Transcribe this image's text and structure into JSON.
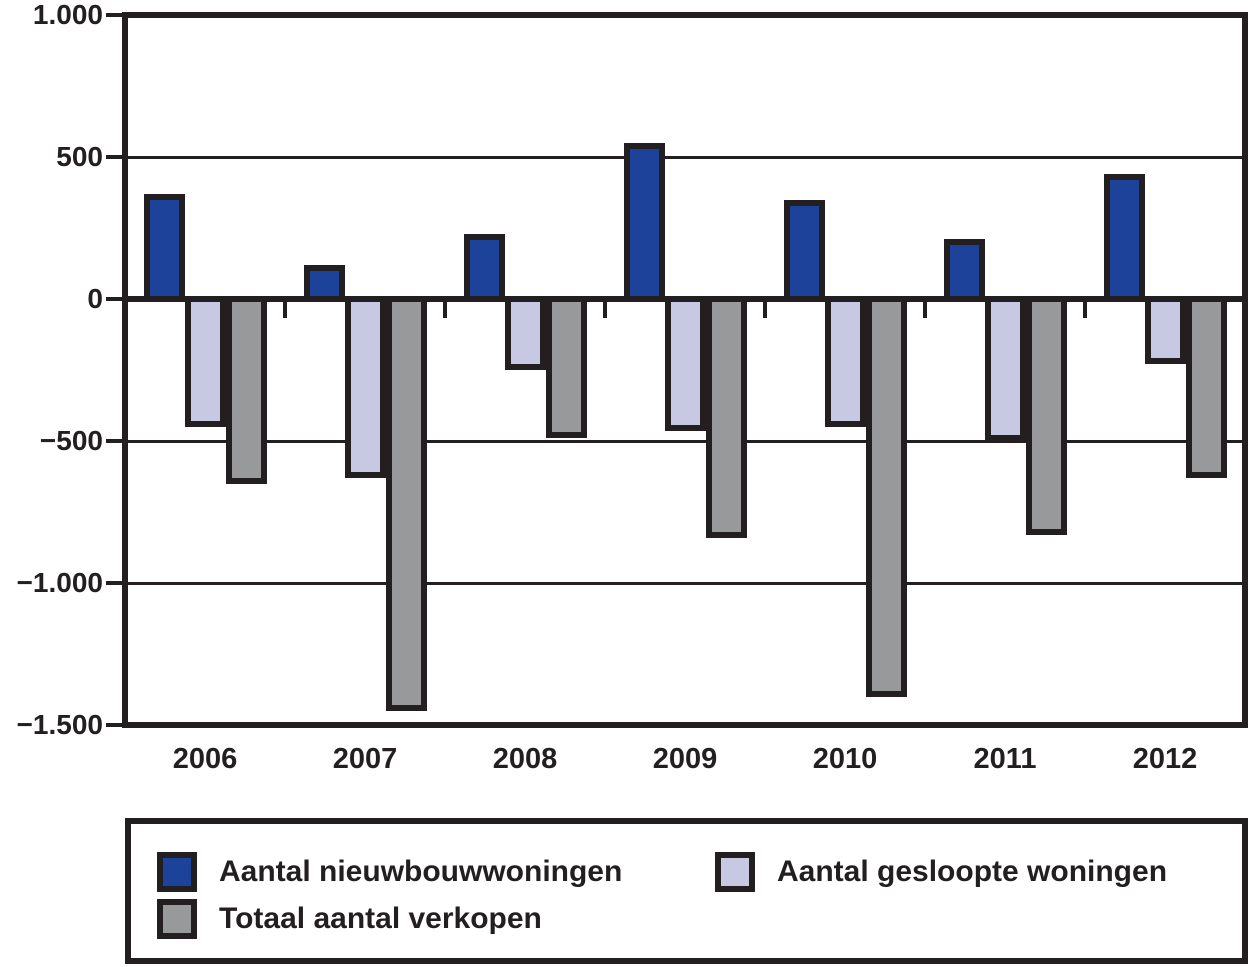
{
  "chart_data": {
    "type": "bar",
    "title": "",
    "xlabel": "",
    "ylabel": "",
    "categories": [
      "2006",
      "2007",
      "2008",
      "2009",
      "2010",
      "2011",
      "2012"
    ],
    "series": [
      {
        "name": "Aantal nieuwbouwwoningen",
        "color": "#1d4299",
        "values": [
          370,
          120,
          230,
          550,
          350,
          210,
          440
        ]
      },
      {
        "name": "Aantal gesloopte woningen",
        "color": "#c7c9e3",
        "values": [
          -450,
          -630,
          -250,
          -465,
          -450,
          -500,
          -230
        ]
      },
      {
        "name": "Totaal aantal verkopen",
        "color": "#98999b",
        "values": [
          -650,
          -1450,
          -490,
          -840,
          -1400,
          -830,
          -630
        ]
      }
    ],
    "ylim": [
      -1500,
      1000
    ],
    "y_ticks": [
      {
        "value": 1000,
        "label": "1.000"
      },
      {
        "value": 500,
        "label": "500"
      },
      {
        "value": 0,
        "label": "0"
      },
      {
        "value": -500,
        "label": "−500"
      },
      {
        "value": -1000,
        "label": "−1.000"
      },
      {
        "value": -1500,
        "label": "−1.500"
      }
    ],
    "grid": "horizontal",
    "legend_position": "bottom",
    "axis_color": "#231f20",
    "background_color": "#ffffff"
  }
}
